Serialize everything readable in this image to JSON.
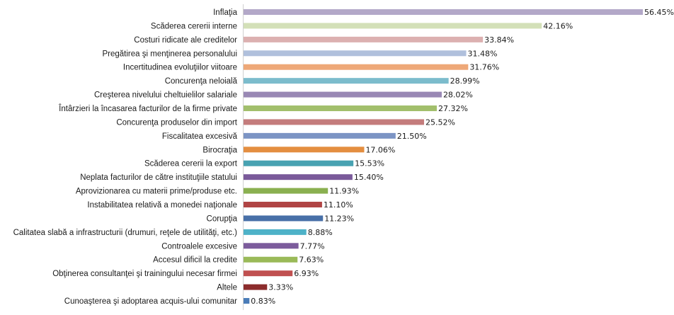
{
  "chart_data": {
    "type": "bar",
    "orientation": "horizontal",
    "title": "",
    "xlabel": "",
    "ylabel": "",
    "xlim": [
      0,
      56.45
    ],
    "grid": false,
    "legend": "none",
    "value_suffix": "%",
    "categories": [
      "Inflaţia",
      "Scăderea cererii interne",
      "Costuri ridicate ale creditelor",
      "Pregătirea şi menţinerea personalului",
      "Incertitudinea evoluţiilor viitoare",
      "Concurenţa neloială",
      "Creşterea nivelului cheltuielilor salariale",
      "Întârzieri la încasarea facturilor de la firme private",
      "Concurenţa produselor din import",
      "Fiscalitatea excesivă",
      "Birocraţia",
      "Scăderea cererii la export",
      "Neplata facturilor de către instituţiile statului",
      "Aprovizionarea cu materii prime/produse etc.",
      "Instabilitatea relativă a monedei naţionale",
      "Corupţia",
      "Calitatea slabă a infrastructurii (drumuri, reţele de utilităţi, etc.)",
      "Controalele excesive",
      "Accesul dificil la credite",
      "Obţinerea consultanţei şi trainingului necesar firmei",
      "Altele",
      "Cunoaşterea şi adoptarea acquis-ului comunitar"
    ],
    "values": [
      56.45,
      42.16,
      33.84,
      31.48,
      31.76,
      28.99,
      28.02,
      27.32,
      25.52,
      21.5,
      17.06,
      15.53,
      15.4,
      11.93,
      11.1,
      11.23,
      8.88,
      7.77,
      7.63,
      6.93,
      3.33,
      0.83
    ],
    "value_labels": [
      "56.45%",
      "42.16%",
      "33.84%",
      "31.48%",
      "31.76%",
      "28.99%",
      "28.02%",
      "27.32%",
      "25.52%",
      "21.50%",
      "17.06%",
      "15.53%",
      "15.40%",
      "11.93%",
      "11.10%",
      "11.23%",
      "8.88%",
      "7.77%",
      "7.63%",
      "6.93%",
      "3.33%",
      "0.83%"
    ],
    "colors": [
      "#b3a8c8",
      "#d3e0b8",
      "#dcb0b0",
      "#b0c0dc",
      "#eea878",
      "#7cbccc",
      "#9988b4",
      "#a2bf6c",
      "#c47c7c",
      "#7c94c4",
      "#e48e40",
      "#48a2b2",
      "#7a5a9a",
      "#8ab050",
      "#b04444",
      "#4870a8",
      "#4eb2c8",
      "#7c5c9c",
      "#9aba58",
      "#c05050",
      "#8c2c2c",
      "#4a7cb8"
    ]
  }
}
